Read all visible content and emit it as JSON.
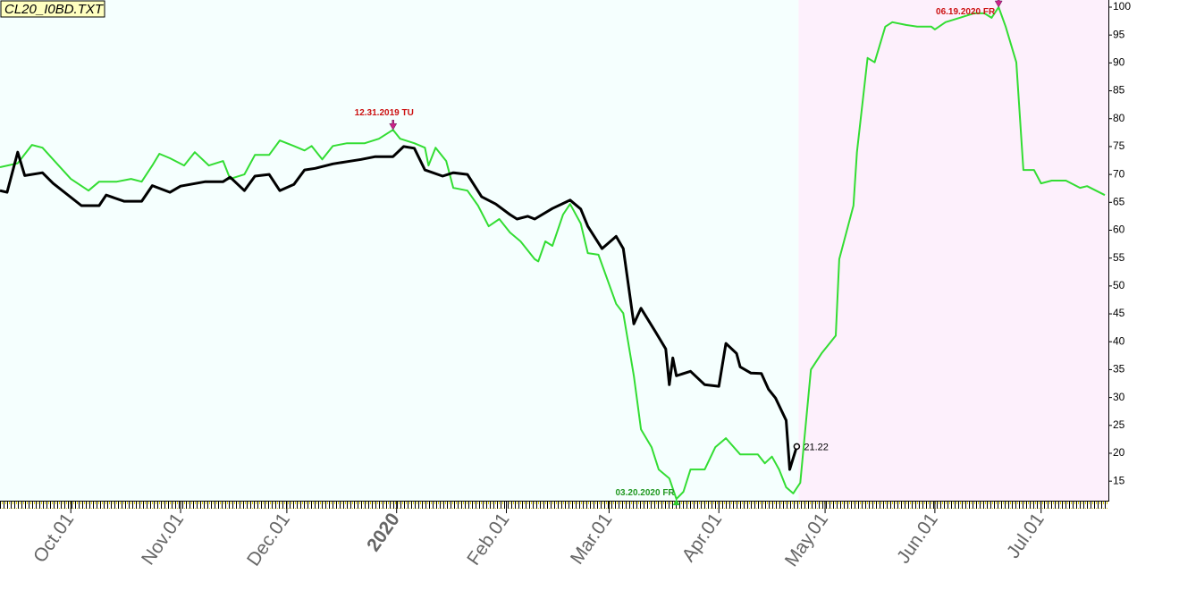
{
  "chart_data": {
    "type": "line",
    "title": "CL20_I0BD.TXT",
    "xlim": [
      "2019-09-11",
      "2020-07-20"
    ],
    "ylim": [
      11.5,
      100
    ],
    "yticks": [
      15,
      20,
      25,
      30,
      35,
      40,
      45,
      50,
      55,
      60,
      65,
      70,
      75,
      80,
      85,
      90,
      95,
      100
    ],
    "xticks": [
      {
        "value": "2019-10-01",
        "label": "Oct.01"
      },
      {
        "value": "2019-11-01",
        "label": "Nov.01"
      },
      {
        "value": "2019-12-01",
        "label": "Dec.01"
      },
      {
        "value": "2020-01-01",
        "label": "2020",
        "color": "#8b0000"
      },
      {
        "value": "2020-02-01",
        "label": "Feb.01"
      },
      {
        "value": "2020-03-01",
        "label": "Mar.01"
      },
      {
        "value": "2020-04-01",
        "label": "Apr.01"
      },
      {
        "value": "2020-05-01",
        "label": "May.01"
      },
      {
        "value": "2020-06-01",
        "label": "Jun.01"
      },
      {
        "value": "2020-07-01",
        "label": "Jul.01"
      }
    ],
    "background_colors": [
      "#f5fffe",
      "#fdf0fc"
    ],
    "series": [
      {
        "color": "#000000",
        "width": 3,
        "label_last": true,
        "x": [
          "2019-09-11",
          "2019-09-13",
          "2019-09-16",
          "2019-09-18",
          "2019-09-23",
          "2019-09-26",
          "2019-10-04",
          "2019-10-09",
          "2019-10-11",
          "2019-10-16",
          "2019-10-21",
          "2019-10-24",
          "2019-10-29",
          "2019-11-01",
          "2019-11-08",
          "2019-11-13",
          "2019-11-15",
          "2019-11-19",
          "2019-11-22",
          "2019-11-26",
          "2019-11-29",
          "2019-12-03",
          "2019-12-06",
          "2019-12-09",
          "2019-12-14",
          "2019-12-18",
          "2019-12-22",
          "2019-12-26",
          "2019-12-31",
          "2020-01-03",
          "2020-01-06",
          "2020-01-09",
          "2020-01-14",
          "2020-01-17",
          "2020-01-21",
          "2020-01-25",
          "2020-01-29",
          "2020-02-02",
          "2020-02-04",
          "2020-02-07",
          "2020-02-09",
          "2020-02-14",
          "2020-02-19",
          "2020-02-22",
          "2020-02-24",
          "2020-02-28",
          "2020-03-03",
          "2020-03-05",
          "2020-03-08",
          "2020-03-10",
          "2020-03-14",
          "2020-03-17",
          "2020-03-18",
          "2020-03-19",
          "2020-03-20",
          "2020-03-24",
          "2020-03-28",
          "2020-04-01",
          "2020-04-03",
          "2020-04-06",
          "2020-04-07",
          "2020-04-10",
          "2020-04-13",
          "2020-04-15",
          "2020-04-17",
          "2020-04-20",
          "2020-04-21",
          "2020-04-23"
        ],
        "values": [
          67.1,
          66.8,
          74,
          69.8,
          70.3,
          68.4,
          64.4,
          64.4,
          66.3,
          65.2,
          65.2,
          68,
          66.8,
          67.9,
          68.7,
          68.7,
          69.5,
          67.1,
          69.7,
          70,
          67.1,
          68.2,
          70.8,
          71.1,
          71.9,
          72.3,
          72.7,
          73.2,
          73.2,
          75,
          74.7,
          70.8,
          69.7,
          70.3,
          70,
          66,
          64.7,
          62.8,
          62,
          62.5,
          62,
          63.9,
          65.4,
          63.8,
          60.7,
          56.7,
          58.9,
          56.7,
          43.2,
          46,
          41.9,
          38.7,
          32.3,
          37.1,
          33.9,
          34.7,
          32.3,
          32,
          39.7,
          37.9,
          35.5,
          34.4,
          34.3,
          31.5,
          29.9,
          25.9,
          17.1,
          21.22
        ]
      },
      {
        "color": "#33dd33",
        "width": 2,
        "x": [
          "2019-09-11",
          "2019-09-16",
          "2019-09-20",
          "2019-09-23",
          "2019-09-26",
          "2019-10-01",
          "2019-10-06",
          "2019-10-09",
          "2019-10-14",
          "2019-10-18",
          "2019-10-21",
          "2019-10-24",
          "2019-10-26",
          "2019-10-29",
          "2019-11-02",
          "2019-11-05",
          "2019-11-09",
          "2019-11-13",
          "2019-11-15",
          "2019-11-19",
          "2019-11-22",
          "2019-11-26",
          "2019-11-29",
          "2019-12-03",
          "2019-12-06",
          "2019-12-08",
          "2019-12-11",
          "2019-12-14",
          "2019-12-18",
          "2019-12-23",
          "2019-12-27",
          "2019-12-31",
          "2020-01-02",
          "2020-01-06",
          "2020-01-09",
          "2020-01-10",
          "2020-01-12",
          "2020-01-15",
          "2020-01-17",
          "2020-01-21",
          "2020-01-24",
          "2020-01-27",
          "2020-01-30",
          "2020-02-02",
          "2020-02-05",
          "2020-02-09",
          "2020-02-10",
          "2020-02-12",
          "2020-02-14",
          "2020-02-17",
          "2020-02-19",
          "2020-02-22",
          "2020-02-24",
          "2020-02-27",
          "2020-03-03",
          "2020-03-05",
          "2020-03-08",
          "2020-03-10",
          "2020-03-13",
          "2020-03-15",
          "2020-03-18",
          "2020-03-20",
          "2020-03-22",
          "2020-03-24",
          "2020-03-28",
          "2020-03-31",
          "2020-04-03",
          "2020-04-07",
          "2020-04-12",
          "2020-04-14",
          "2020-04-16",
          "2020-04-18",
          "2020-04-20",
          "2020-04-22",
          "2020-04-24",
          "2020-04-27",
          "2020-04-30",
          "2020-05-04",
          "2020-05-05",
          "2020-05-09",
          "2020-05-10",
          "2020-05-13",
          "2020-05-15",
          "2020-05-18",
          "2020-05-20",
          "2020-05-24",
          "2020-05-27",
          "2020-05-31",
          "2020-06-01",
          "2020-06-04",
          "2020-06-08",
          "2020-06-12",
          "2020-06-15",
          "2020-06-17",
          "2020-06-19",
          "2020-06-21",
          "2020-06-24",
          "2020-06-26",
          "2020-06-29",
          "2020-07-01",
          "2020-07-04",
          "2020-07-08",
          "2020-07-12",
          "2020-07-14",
          "2020-07-19"
        ],
        "values": [
          71.3,
          72,
          75.3,
          74.8,
          72.7,
          69.2,
          67.1,
          68.7,
          68.7,
          69.2,
          68.7,
          71.6,
          73.7,
          72.9,
          71.6,
          74,
          71.6,
          72.4,
          69.2,
          70,
          73.5,
          73.5,
          76.1,
          75.1,
          74.3,
          75.1,
          72.7,
          75.1,
          75.6,
          75.6,
          76.4,
          78,
          76.4,
          75.6,
          74.8,
          71.6,
          74.8,
          72.4,
          67.6,
          67.1,
          64.4,
          60.7,
          62,
          59.6,
          58,
          54.8,
          54.4,
          58,
          57.2,
          62.8,
          64.7,
          61.2,
          55.9,
          55.6,
          46.8,
          45.1,
          33.9,
          24.3,
          21.1,
          17.1,
          15.5,
          11.8,
          13.1,
          17.1,
          17.1,
          21.1,
          22.7,
          19.8,
          19.8,
          18.2,
          19.4,
          17.1,
          13.9,
          12.8,
          14.7,
          35,
          37.9,
          41.1,
          54.8,
          64.4,
          74,
          90.9,
          90.1,
          96.5,
          97.3,
          96.8,
          96.5,
          96.5,
          96,
          97.3,
          98.1,
          98.9,
          98.9,
          98.1,
          100,
          96.5,
          90.1,
          70.8,
          70.8,
          68.4,
          68.9,
          68.9,
          67.6,
          67.9,
          66.3
        ]
      }
    ],
    "annotations": [
      {
        "text": "12.31.2019 TU",
        "x": "2019-12-31",
        "color": "#cc1111",
        "arrow_color": "#cc2288",
        "side": "above"
      },
      {
        "text": "06.19.2020 FR",
        "x": "2020-06-19",
        "color": "#cc1111",
        "arrow_color": "#cc2288",
        "side": "left-below"
      },
      {
        "text": "03.20.2020 FR",
        "x": "2020-03-20",
        "color": "#229922",
        "arrow_color": "#33cc33",
        "side": "left-above"
      }
    ]
  }
}
